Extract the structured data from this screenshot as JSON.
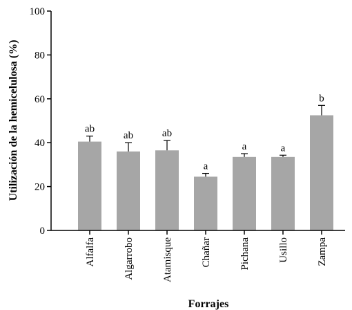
{
  "chart_data": {
    "type": "bar",
    "title": "",
    "xlabel": "Forrajes",
    "ylabel": "Utilización de la hemicelulosa (%)",
    "ylim": [
      0,
      100
    ],
    "yticks": [
      0,
      20,
      40,
      60,
      80,
      100
    ],
    "categories": [
      "Alfalfa",
      "Algarrobo",
      "Atamisque",
      "Chañar",
      "Pichana",
      "Usillo",
      "Zampa"
    ],
    "values": [
      40.5,
      36,
      36.5,
      24.5,
      33.5,
      33.5,
      52.5
    ],
    "errors": [
      2.5,
      4,
      4.5,
      1.5,
      1.5,
      0.8,
      4.5
    ],
    "significance_labels": [
      "ab",
      "ab",
      "ab",
      "a",
      "a",
      "a",
      "b"
    ],
    "grid": false,
    "bar_color": "#a6a6a6"
  }
}
